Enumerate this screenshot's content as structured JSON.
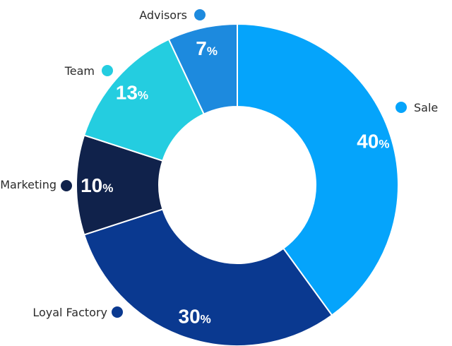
{
  "chart_data": {
    "type": "pie",
    "style": "donut",
    "title": "",
    "categories": [
      "Sale",
      "Loyal Factory",
      "Marketing",
      "Team",
      "Advisors"
    ],
    "values": [
      40,
      30,
      10,
      13,
      7
    ],
    "value_labels": [
      "40%",
      "30%",
      "10%",
      "13%",
      "7%"
    ],
    "colors": [
      "#05a4fb",
      "#0a3990",
      "#10224b",
      "#24cde0",
      "#1d8ade"
    ],
    "start_angle": "12 o'clock",
    "direction": "clockwise",
    "legend": "labels around the ring with colored dots"
  }
}
